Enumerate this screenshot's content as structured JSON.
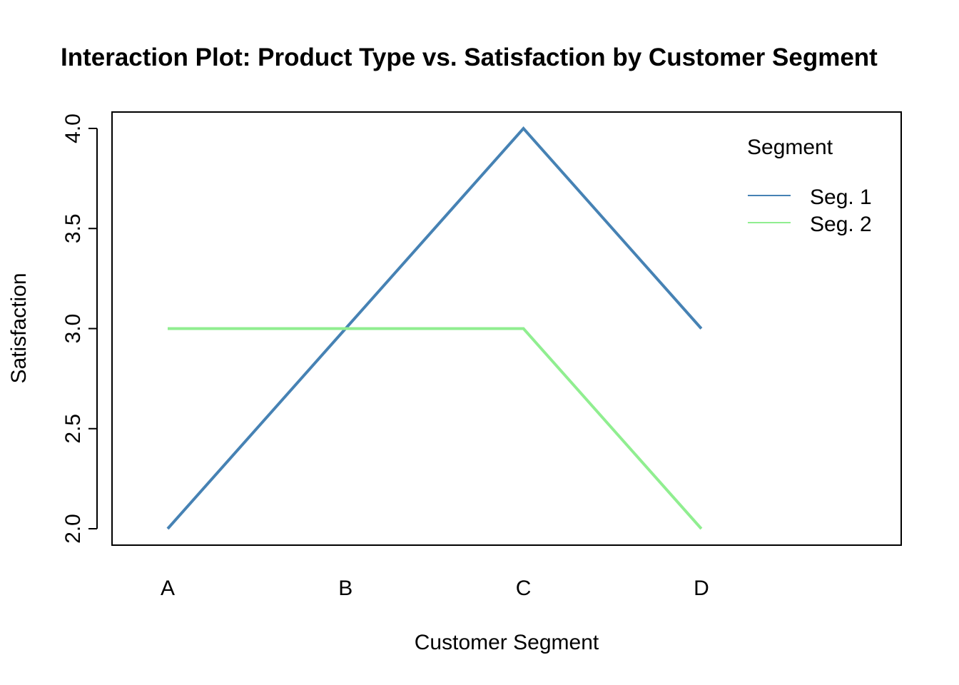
{
  "chart_data": {
    "type": "line",
    "title": "Interaction Plot: Product Type vs. Satisfaction by Customer Segment",
    "xlabel": "Customer Segment",
    "ylabel": "Satisfaction",
    "categories": [
      "A",
      "B",
      "C",
      "D"
    ],
    "ylim": [
      2.0,
      4.0
    ],
    "yticks": [
      "2.0",
      "2.5",
      "3.0",
      "3.5",
      "4.0"
    ],
    "legend": {
      "title": "Segment",
      "position": "top-right"
    },
    "series": [
      {
        "name": "Seg. 1",
        "values": [
          2.0,
          3.0,
          4.0,
          3.0
        ],
        "color": "#4682B4"
      },
      {
        "name": "Seg. 2",
        "values": [
          3.0,
          3.0,
          3.0,
          2.0
        ],
        "color": "#90EE90"
      }
    ]
  }
}
